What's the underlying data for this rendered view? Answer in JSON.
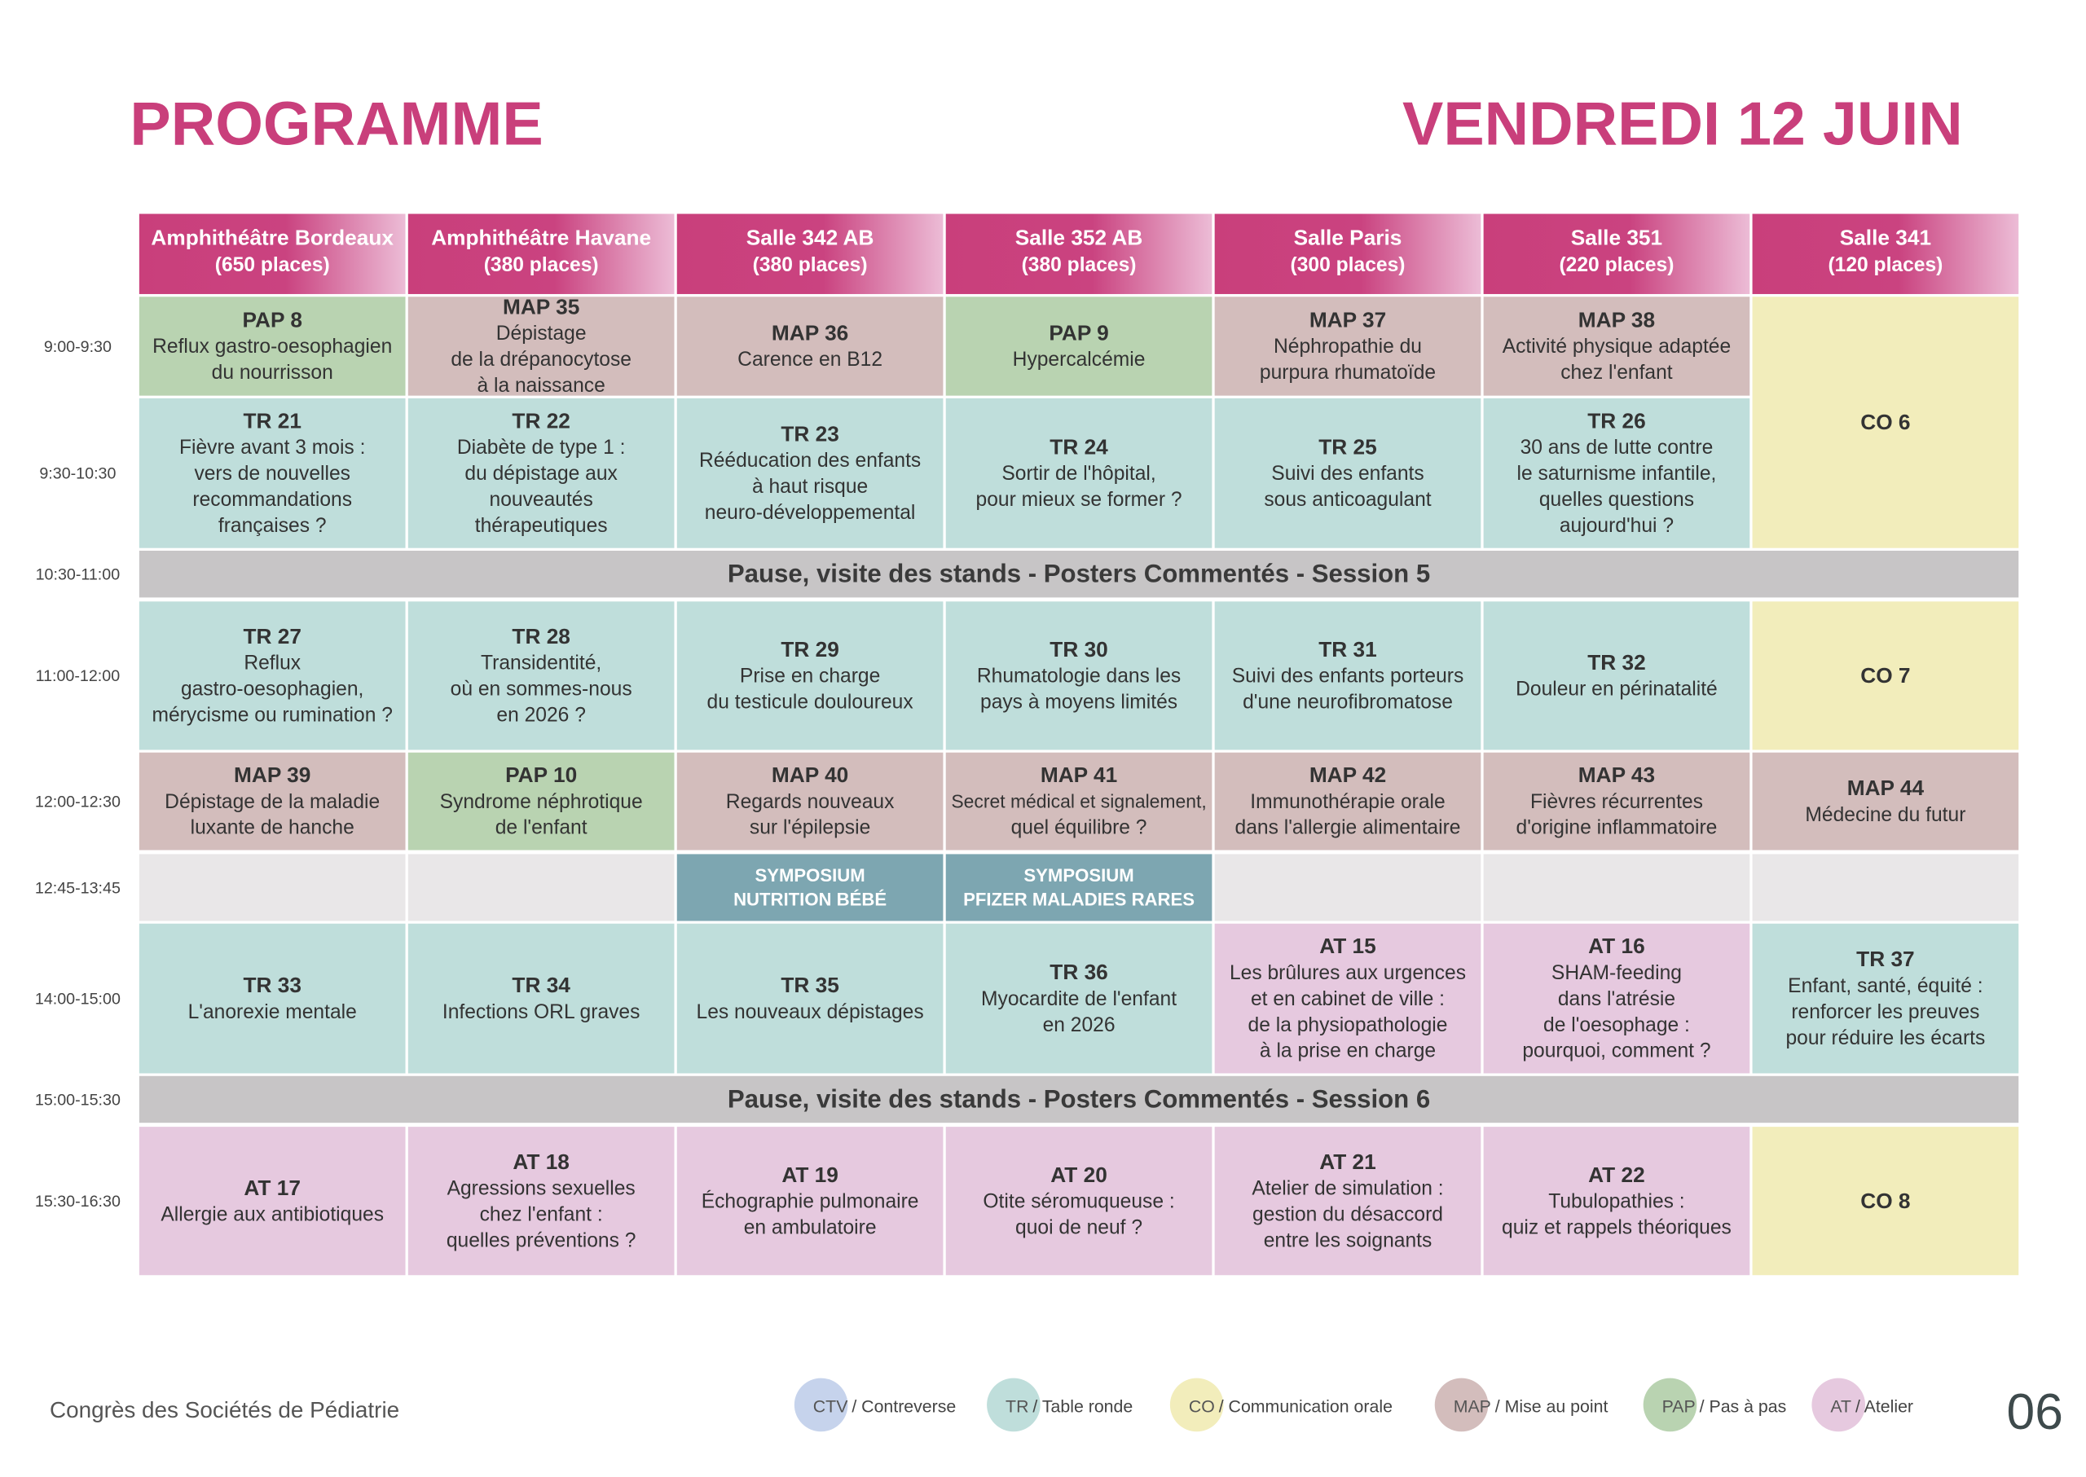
{
  "header": {
    "title": "PROGRAMME",
    "day": "VENDREDI 12 JUIN"
  },
  "rooms": [
    {
      "name": "Amphithéâtre Bordeaux",
      "capacity": "(650 places)"
    },
    {
      "name": "Amphithéâtre Havane",
      "capacity": "(380 places)"
    },
    {
      "name": "Salle 342 AB",
      "capacity": "(380 places)"
    },
    {
      "name": "Salle 352 AB",
      "capacity": "(380 places)"
    },
    {
      "name": "Salle Paris",
      "capacity": "(300 places)"
    },
    {
      "name": "Salle 351",
      "capacity": "(220 places)"
    },
    {
      "name": "Salle 341",
      "capacity": "(120 places)"
    }
  ],
  "rows": [
    {
      "time": "9:00-9:30",
      "cells": [
        {
          "code": "PAP 8",
          "lines": [
            "Reflux gastro-oesophagien",
            "du nourrisson"
          ]
        },
        {
          "code": "MAP 35",
          "lines": [
            "Dépistage",
            "de la drépanocytose",
            "à la naissance"
          ]
        },
        {
          "code": "MAP 36",
          "lines": [
            "Carence en B12"
          ]
        },
        {
          "code": "PAP 9",
          "lines": [
            "Hypercalcémie"
          ]
        },
        {
          "code": "MAP 37",
          "lines": [
            "Néphropathie du",
            "purpura rhumatoïde"
          ]
        },
        {
          "code": "MAP 38",
          "lines": [
            "Activité physique adaptée",
            "chez l'enfant"
          ]
        },
        {
          "code": "CO 6",
          "rowspan": 2
        }
      ]
    },
    {
      "time": "9:30-10:30",
      "cells": [
        {
          "code": "TR 21",
          "lines": [
            "Fièvre avant 3 mois :",
            "vers de nouvelles",
            "recommandations",
            "françaises ?"
          ]
        },
        {
          "code": "TR 22",
          "lines": [
            "Diabète de type 1 :",
            "du dépistage aux",
            "nouveautés",
            "thérapeutiques"
          ]
        },
        {
          "code": "TR 23",
          "lines": [
            "Rééducation des enfants",
            "à haut risque",
            "neuro-développemental"
          ]
        },
        {
          "code": "TR 24",
          "lines": [
            "Sortir de l'hôpital,",
            "pour mieux se former ?"
          ]
        },
        {
          "code": "TR 25",
          "lines": [
            "Suivi des enfants",
            "sous anticoagulant"
          ]
        },
        {
          "code": "TR 26",
          "lines": [
            "30 ans de lutte contre",
            "le saturnisme infantile,",
            "quelles questions",
            "aujourd'hui ?"
          ]
        }
      ]
    },
    {
      "time": "10:30-11:00",
      "pause": "Pause, visite des stands - Posters Commentés - Session 5"
    },
    {
      "time": "11:00-12:00",
      "cells": [
        {
          "code": "TR 27",
          "lines": [
            "Reflux",
            "gastro-oesophagien,",
            "mérycisme ou rumination ?"
          ]
        },
        {
          "code": "TR 28",
          "lines": [
            "Transidentité,",
            "où en sommes-nous",
            "en 2026 ?"
          ]
        },
        {
          "code": "TR 29",
          "lines": [
            "Prise en charge",
            "du testicule douloureux"
          ]
        },
        {
          "code": "TR 30",
          "lines": [
            "Rhumatologie dans les",
            "pays à moyens limités"
          ]
        },
        {
          "code": "TR 31",
          "lines": [
            "Suivi des enfants porteurs",
            "d'une neurofibromatose"
          ]
        },
        {
          "code": "TR 32",
          "lines": [
            "Douleur en périnatalité"
          ]
        },
        {
          "code": "CO 7"
        }
      ]
    },
    {
      "time": "12:00-12:30",
      "cells": [
        {
          "code": "MAP 39",
          "lines": [
            "Dépistage de la maladie",
            "luxante de hanche"
          ]
        },
        {
          "code": "PAP 10",
          "lines": [
            "Syndrome néphrotique",
            "de l'enfant"
          ]
        },
        {
          "code": "MAP 40",
          "lines": [
            "Regards nouveaux",
            "sur l'épilepsie"
          ]
        },
        {
          "code": "MAP 41",
          "lines": [
            "Secret médical et signalement,",
            "quel équilibre ?"
          ]
        },
        {
          "code": "MAP 42",
          "lines": [
            "Immunothérapie orale",
            "dans l'allergie alimentaire"
          ]
        },
        {
          "code": "MAP 43",
          "lines": [
            "Fièvres récurrentes",
            "d'origine inflammatoire"
          ]
        },
        {
          "code": "MAP 44",
          "lines": [
            "Médecine du futur"
          ]
        }
      ]
    },
    {
      "time": "12:45-13:45",
      "cells": [
        null,
        null,
        {
          "symposium": [
            "SYMPOSIUM",
            "NUTRITION BÉBÉ"
          ],
          "color": "#7da6b1"
        },
        {
          "symposium": [
            "SYMPOSIUM",
            "PFIZER MALADIES RARES"
          ],
          "color": "#7da6b1"
        },
        null,
        null,
        null
      ]
    },
    {
      "time": "14:00-15:00",
      "cells": [
        {
          "code": "TR 33",
          "lines": [
            "L'anorexie mentale"
          ]
        },
        {
          "code": "TR 34",
          "lines": [
            "Infections ORL graves"
          ]
        },
        {
          "code": "TR 35",
          "lines": [
            "Les nouveaux dépistages"
          ]
        },
        {
          "code": "TR 36",
          "lines": [
            "Myocardite de l'enfant",
            "en 2026"
          ]
        },
        {
          "code": "AT 15",
          "lines": [
            "Les brûlures aux urgences",
            "et en cabinet de ville :",
            "de la physiopathologie",
            "à la prise en charge"
          ]
        },
        {
          "code": "AT 16",
          "lines": [
            "SHAM-feeding",
            "dans l'atrésie",
            "de l'oesophage :",
            "pourquoi, comment ?"
          ]
        },
        {
          "code": "TR 37",
          "lines": [
            "Enfant, santé, équité :",
            "renforcer les preuves",
            "pour réduire les écarts"
          ]
        }
      ]
    },
    {
      "time": "15:00-15:30",
      "pause": "Pause, visite des stands - Posters Commentés - Session 6"
    },
    {
      "time": "15:30-16:30",
      "cells": [
        {
          "code": "AT 17",
          "lines": [
            "Allergie aux antibiotiques"
          ]
        },
        {
          "code": "AT 18",
          "lines": [
            "Agressions sexuelles",
            "chez l'enfant :",
            "quelles préventions ?"
          ]
        },
        {
          "code": "AT 19",
          "lines": [
            "Échographie pulmonaire",
            "en ambulatoire"
          ]
        },
        {
          "code": "AT 20",
          "lines": [
            "Otite séromuqueuse :",
            "quoi de neuf ?"
          ]
        },
        {
          "code": "AT 21",
          "lines": [
            "Atelier de simulation :",
            "gestion du désaccord",
            "entre les soignants"
          ]
        },
        {
          "code": "AT 22",
          "lines": [
            "Tubulopathies :",
            "quiz et rappels théoriques"
          ]
        },
        {
          "code": "CO 8"
        }
      ]
    }
  ],
  "legend": [
    {
      "abbr": "CTV",
      "label": "/ Contreverse",
      "color": "#c6d3ec"
    },
    {
      "abbr": "TR",
      "label": "/ Table ronde",
      "color": "#bfdedb"
    },
    {
      "abbr": "CO",
      "label": "/ Communication orale",
      "color": "#f2edbb"
    },
    {
      "abbr": "MAP",
      "label": "/ Mise au point",
      "color": "#d3bdbc"
    },
    {
      "abbr": "PAP",
      "label": "/ Pas à pas",
      "color": "#b9d3b1"
    },
    {
      "abbr": "AT",
      "label": "/ Atelier",
      "color": "#e6c9df"
    }
  ],
  "footer": {
    "organizer": "Congrès des Sociétés de Pédiatrie",
    "page": "06"
  }
}
